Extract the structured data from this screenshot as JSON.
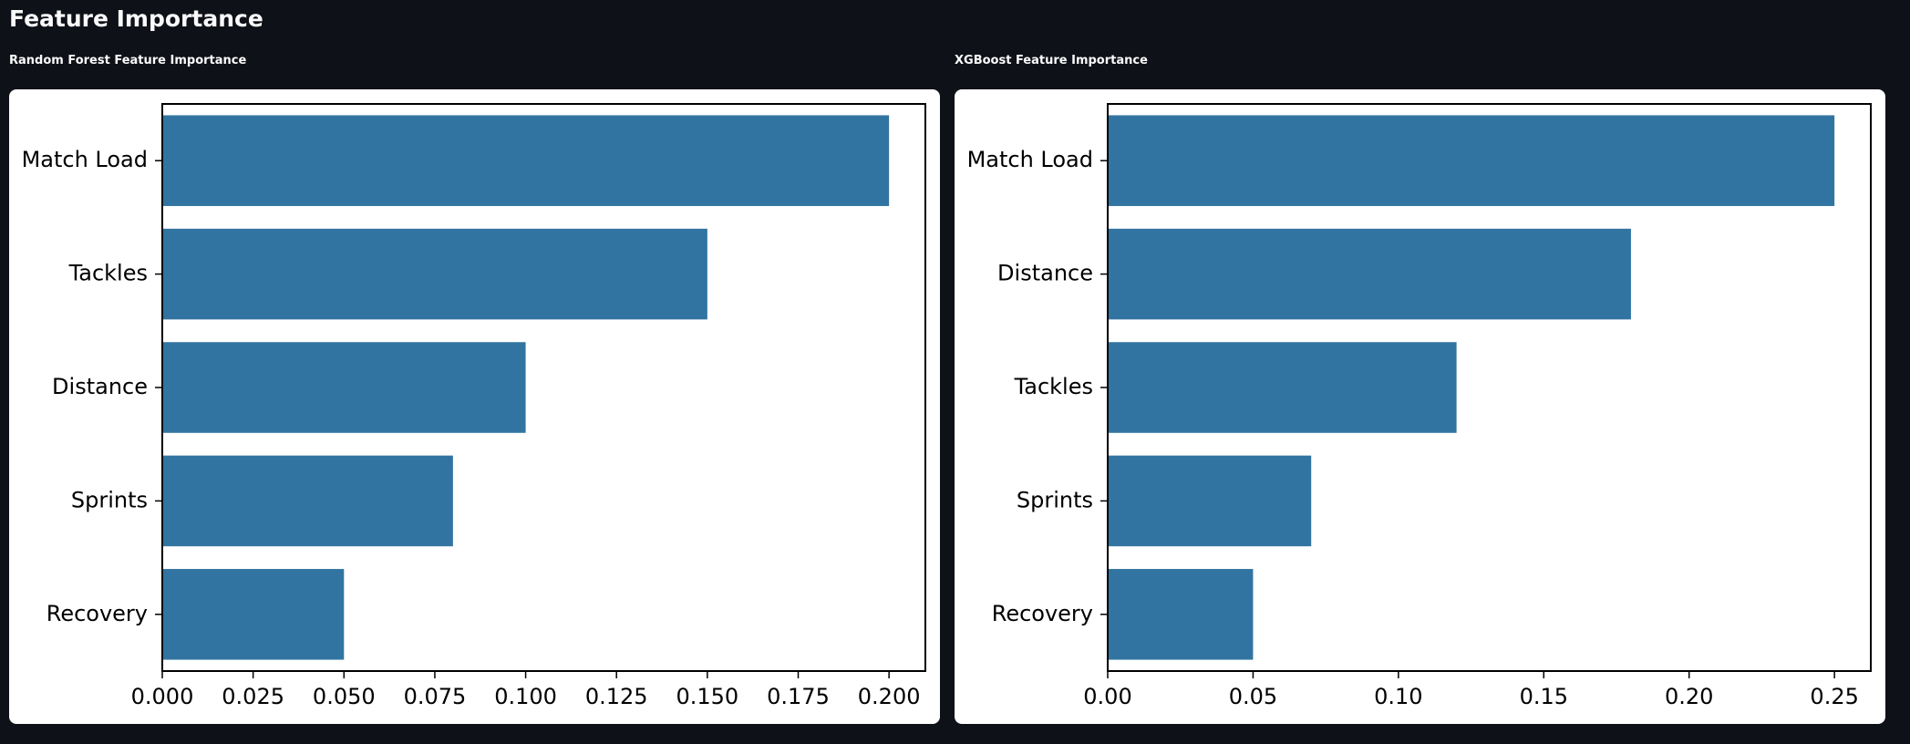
{
  "page": {
    "title": "Feature Importance"
  },
  "colors": {
    "background": "#0e1117",
    "card": "#ffffff",
    "bar": "#3274a1",
    "text_light": "#fafafa"
  },
  "chart_data": [
    {
      "type": "bar",
      "orientation": "horizontal",
      "title": "Random Forest Feature Importance",
      "categories": [
        "Match Load",
        "Tackles",
        "Distance",
        "Sprints",
        "Recovery"
      ],
      "values": [
        0.2,
        0.15,
        0.1,
        0.08,
        0.05
      ],
      "xlim": [
        0,
        0.21
      ],
      "xticks": [
        0,
        0.025,
        0.05,
        0.075,
        0.1,
        0.125,
        0.15,
        0.175,
        0.2
      ],
      "xtick_labels": [
        "0.000",
        "0.025",
        "0.050",
        "0.075",
        "0.100",
        "0.125",
        "0.150",
        "0.175",
        "0.200"
      ],
      "xlabel": "",
      "ylabel": "",
      "grid": false,
      "legend": "none"
    },
    {
      "type": "bar",
      "orientation": "horizontal",
      "title": "XGBoost Feature Importance",
      "categories": [
        "Match Load",
        "Distance",
        "Tackles",
        "Sprints",
        "Recovery"
      ],
      "values": [
        0.25,
        0.18,
        0.12,
        0.07,
        0.05
      ],
      "xlim": [
        0,
        0.2625
      ],
      "xticks": [
        0,
        0.05,
        0.1,
        0.15,
        0.2,
        0.25
      ],
      "xtick_labels": [
        "0.00",
        "0.05",
        "0.10",
        "0.15",
        "0.20",
        "0.25"
      ],
      "xlabel": "",
      "ylabel": "",
      "grid": false,
      "legend": "none"
    }
  ]
}
